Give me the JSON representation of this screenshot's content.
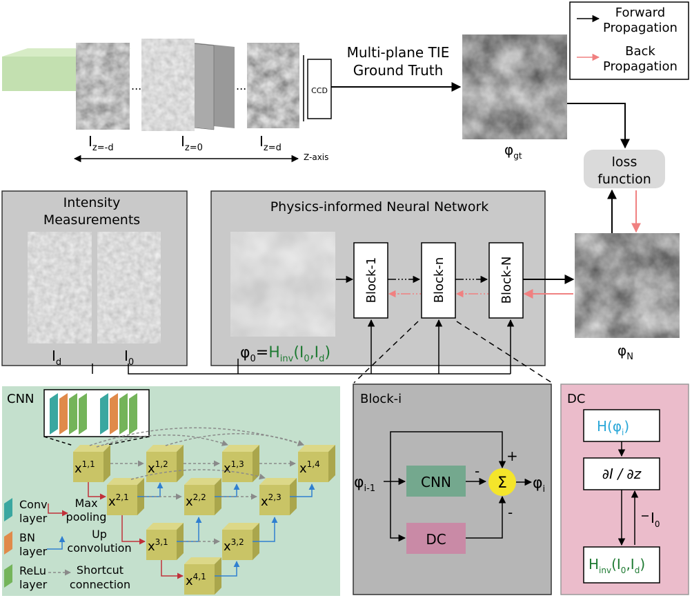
{
  "legend": {
    "forward": "Forward Propagation",
    "back": "Back Propagation",
    "forward_color": "#000000",
    "back_color": "#f08080"
  },
  "top": {
    "ccd": "CCD",
    "gt_label_1": "Multi-plane TIE",
    "gt_label_2": "Ground Truth",
    "ellipsis": "...",
    "z_axis": "Z-axis",
    "i_main": "I",
    "sub_minus_d": "z=-d",
    "sub_zero": "z=0",
    "sub_plus_d": "z=d",
    "phi": "φ",
    "gt_sub": "gt"
  },
  "loss": {
    "line1": "loss",
    "line2": "function"
  },
  "intensity": {
    "title_1": "Intensity",
    "title_2": "Measurements",
    "i": "I",
    "sub_d": "d",
    "sub_0": "0"
  },
  "pinn": {
    "title": "Physics-informed Neural Network",
    "blocks": [
      "Block-1",
      "Block-n",
      "Block-N"
    ],
    "dots": "······",
    "phi": "φ",
    "sub_0": "0",
    "eq": "=",
    "h": "H",
    "inv": "inv",
    "args_open": "(I",
    "comma": ",I",
    "close": ")",
    "sub_d": "d",
    "phi_n_sub": "N",
    "green": "#1e7a32"
  },
  "cnn": {
    "title": "CNN",
    "nodes": [
      "x1,1",
      "x1,2",
      "x1,3",
      "x1,4",
      "x2,1",
      "x2,2",
      "x2,3",
      "x3,1",
      "x3,2",
      "x4,1"
    ],
    "legend": {
      "conv": "Conv layer",
      "bn": "BN layer",
      "relu": "ReLu layer",
      "max_pool": "Max pooling",
      "up_conv": "Up convolution",
      "shortcut": "Shortcut connection"
    },
    "colors": {
      "conv": "#3aa7a0",
      "bn": "#e08a4a",
      "relu": "#74b45a",
      "cube": "#c9c466",
      "red": "#c0303a",
      "blue": "#2f7fd0",
      "bg": "#c4e0cd"
    }
  },
  "block_i": {
    "title": "Block-i",
    "cnn": "CNN",
    "dc": "DC",
    "phi": "φ",
    "sub_in": "i-1",
    "sub_out": "i",
    "plus": "+",
    "minus": "-",
    "sigma": "Σ",
    "colors": {
      "cnn": "#74a88e",
      "dc": "#c98aa6",
      "sum": "#f4e52b",
      "bg": "#b6b6b6"
    }
  },
  "dc": {
    "title": "DC",
    "h_phi": "H(φ",
    "h_phi_sub": "i",
    "h_phi_close": ")",
    "deriv": "∂I / ∂z",
    "i0": "I",
    "i0_sub": "0",
    "hinv": "H",
    "hinv_sub": "inv",
    "hinv_args": "(I",
    "hinv_sub0": "0",
    "hinv_comma": ",I",
    "hinv_subd": "d",
    "hinv_close": ")",
    "colors": {
      "bg": "#ebbccb",
      "cyan": "#2aa7d8",
      "green": "#1e7a32"
    }
  }
}
